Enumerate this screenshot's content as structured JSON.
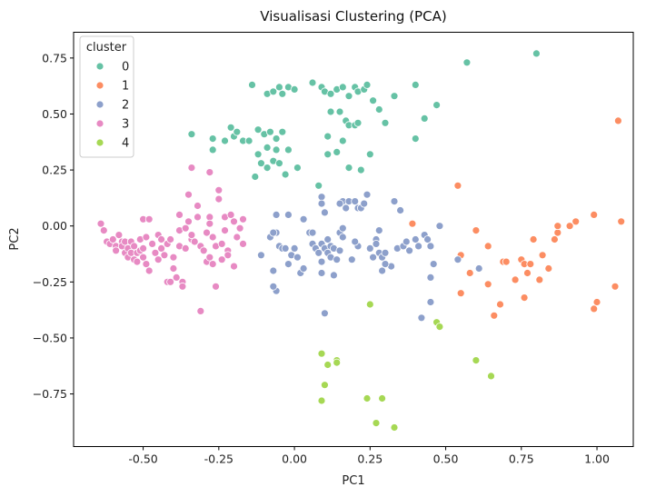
{
  "chart_data": {
    "type": "scatter",
    "title": "Visualisasi Clustering (PCA)",
    "xlabel": "PC1",
    "ylabel": "PC2",
    "xlim": [
      -0.73,
      1.12
    ],
    "ylim": [
      -0.985,
      0.865
    ],
    "xticks": [
      "-0.50",
      "-0.25",
      "0.00",
      "0.25",
      "0.50",
      "0.75",
      "1.00"
    ],
    "xtick_values": [
      -0.5,
      -0.25,
      0,
      0.25,
      0.5,
      0.75,
      1.0
    ],
    "yticks": [
      "−0.75",
      "−0.50",
      "−0.25",
      "0.00",
      "0.25",
      "0.50",
      "0.75"
    ],
    "ytick_values": [
      -0.75,
      -0.5,
      -0.25,
      0,
      0.25,
      0.5,
      0.75
    ],
    "grid": false,
    "legend": {
      "title": "cluster",
      "placement": "top-left"
    },
    "series": [
      {
        "name": "0",
        "color": "#66c2a5",
        "points": [
          [
            0.57,
            0.73
          ],
          [
            0.8,
            0.77
          ],
          [
            -0.14,
            0.63
          ],
          [
            -0.09,
            0.59
          ],
          [
            -0.07,
            0.6
          ],
          [
            -0.05,
            0.62
          ],
          [
            -0.04,
            0.59
          ],
          [
            -0.02,
            0.62
          ],
          [
            0.0,
            0.61
          ],
          [
            0.06,
            0.64
          ],
          [
            0.09,
            0.62
          ],
          [
            0.1,
            0.6
          ],
          [
            0.12,
            0.59
          ],
          [
            0.14,
            0.61
          ],
          [
            0.16,
            0.62
          ],
          [
            0.18,
            0.58
          ],
          [
            0.2,
            0.62
          ],
          [
            0.21,
            0.6
          ],
          [
            0.23,
            0.61
          ],
          [
            0.24,
            0.63
          ],
          [
            0.26,
            0.56
          ],
          [
            0.28,
            0.52
          ],
          [
            0.3,
            0.46
          ],
          [
            0.33,
            0.58
          ],
          [
            0.4,
            0.63
          ],
          [
            0.47,
            0.54
          ],
          [
            0.43,
            0.48
          ],
          [
            0.4,
            0.39
          ],
          [
            -0.34,
            0.41
          ],
          [
            -0.27,
            0.34
          ],
          [
            -0.27,
            0.39
          ],
          [
            -0.23,
            0.38
          ],
          [
            -0.21,
            0.44
          ],
          [
            -0.2,
            0.4
          ],
          [
            -0.19,
            0.42
          ],
          [
            -0.17,
            0.38
          ],
          [
            -0.15,
            0.38
          ],
          [
            -0.12,
            0.43
          ],
          [
            -0.1,
            0.41
          ],
          [
            -0.08,
            0.42
          ],
          [
            -0.06,
            0.39
          ],
          [
            -0.04,
            0.42
          ],
          [
            -0.02,
            0.34
          ],
          [
            -0.06,
            0.34
          ],
          [
            -0.09,
            0.35
          ],
          [
            -0.12,
            0.32
          ],
          [
            -0.11,
            0.28
          ],
          [
            -0.09,
            0.26
          ],
          [
            -0.07,
            0.29
          ],
          [
            -0.05,
            0.28
          ],
          [
            -0.03,
            0.23
          ],
          [
            0.01,
            0.26
          ],
          [
            -0.13,
            0.22
          ],
          [
            0.11,
            0.4
          ],
          [
            0.12,
            0.51
          ],
          [
            0.15,
            0.51
          ],
          [
            0.16,
            0.38
          ],
          [
            0.17,
            0.47
          ],
          [
            0.18,
            0.45
          ],
          [
            0.2,
            0.45
          ],
          [
            0.21,
            0.46
          ],
          [
            0.11,
            0.32
          ],
          [
            0.14,
            0.33
          ],
          [
            0.18,
            0.26
          ],
          [
            0.22,
            0.25
          ],
          [
            0.25,
            0.32
          ],
          [
            0.08,
            0.18
          ]
        ]
      },
      {
        "name": "1",
        "color": "#fc8d62",
        "points": [
          [
            1.07,
            0.47
          ],
          [
            0.39,
            0.01
          ],
          [
            0.54,
            0.18
          ],
          [
            0.55,
            -0.13
          ],
          [
            0.6,
            -0.02
          ],
          [
            0.58,
            -0.21
          ],
          [
            0.55,
            -0.3
          ],
          [
            0.64,
            -0.09
          ],
          [
            0.64,
            -0.26
          ],
          [
            0.66,
            -0.4
          ],
          [
            0.68,
            -0.35
          ],
          [
            0.69,
            -0.16
          ],
          [
            0.7,
            -0.16
          ],
          [
            0.73,
            -0.24
          ],
          [
            0.75,
            -0.15
          ],
          [
            0.76,
            -0.17
          ],
          [
            0.76,
            -0.32
          ],
          [
            0.77,
            -0.21
          ],
          [
            0.78,
            -0.17
          ],
          [
            0.79,
            -0.06
          ],
          [
            0.81,
            -0.24
          ],
          [
            0.82,
            -0.13
          ],
          [
            0.84,
            -0.19
          ],
          [
            0.86,
            -0.06
          ],
          [
            0.87,
            -0.03
          ],
          [
            0.87,
            0.0
          ],
          [
            0.91,
            0.0
          ],
          [
            0.93,
            0.02
          ],
          [
            0.99,
            0.05
          ],
          [
            0.99,
            -0.37
          ],
          [
            1.0,
            -0.34
          ],
          [
            1.06,
            -0.27
          ],
          [
            1.08,
            0.02
          ]
        ]
      },
      {
        "name": "2",
        "color": "#8da0cb",
        "points": [
          [
            -0.11,
            -0.13
          ],
          [
            -0.08,
            -0.05
          ],
          [
            -0.06,
            -0.03
          ],
          [
            -0.05,
            -0.09
          ],
          [
            -0.04,
            -0.1
          ],
          [
            -0.06,
            -0.29
          ],
          [
            -0.07,
            -0.27
          ],
          [
            -0.07,
            -0.03
          ],
          [
            -0.06,
            0.05
          ],
          [
            -0.07,
            -0.2
          ],
          [
            -0.03,
            -0.1
          ],
          [
            -0.02,
            -0.17
          ],
          [
            -0.01,
            -0.13
          ],
          [
            0.0,
            -0.1
          ],
          [
            0.01,
            -0.14
          ],
          [
            0.02,
            -0.21
          ],
          [
            -0.02,
            0.05
          ],
          [
            0.03,
            0.03
          ],
          [
            0.05,
            -0.03
          ],
          [
            0.06,
            -0.08
          ],
          [
            0.07,
            -0.1
          ],
          [
            0.08,
            -0.12
          ],
          [
            0.09,
            -0.16
          ],
          [
            0.09,
            -0.08
          ],
          [
            0.09,
            -0.21
          ],
          [
            0.1,
            0.06
          ],
          [
            0.1,
            -0.1
          ],
          [
            0.11,
            -0.06
          ],
          [
            0.11,
            -0.12
          ],
          [
            0.12,
            -0.09
          ],
          [
            0.12,
            -0.14
          ],
          [
            0.13,
            -0.1
          ],
          [
            0.13,
            -0.22
          ],
          [
            0.14,
            -0.15
          ],
          [
            0.15,
            -0.11
          ],
          [
            0.15,
            -0.03
          ],
          [
            0.16,
            -0.01
          ],
          [
            0.16,
            0.11
          ],
          [
            0.17,
            0.08
          ],
          [
            0.18,
            0.11
          ],
          [
            0.19,
            -0.15
          ],
          [
            0.2,
            0.11
          ],
          [
            0.21,
            0.08
          ],
          [
            0.21,
            -0.09
          ],
          [
            0.22,
            0.08
          ],
          [
            0.23,
            0.1
          ],
          [
            0.24,
            0.14
          ],
          [
            0.25,
            -0.1
          ],
          [
            0.26,
            -0.14
          ],
          [
            0.27,
            -0.06
          ],
          [
            0.27,
            -0.08
          ],
          [
            0.28,
            -0.12
          ],
          [
            0.28,
            -0.02
          ],
          [
            0.29,
            -0.14
          ],
          [
            0.29,
            -0.2
          ],
          [
            0.3,
            -0.12
          ],
          [
            0.32,
            -0.18
          ],
          [
            0.33,
            0.11
          ],
          [
            0.34,
            -0.1
          ],
          [
            0.36,
            -0.09
          ],
          [
            0.38,
            -0.11
          ],
          [
            0.4,
            -0.06
          ],
          [
            0.41,
            -0.09
          ],
          [
            0.43,
            -0.04
          ],
          [
            0.44,
            -0.06
          ],
          [
            0.45,
            -0.09
          ],
          [
            0.46,
            -0.17
          ],
          [
            0.45,
            -0.23
          ],
          [
            0.45,
            -0.34
          ],
          [
            0.42,
            -0.41
          ],
          [
            0.48,
            0.0
          ],
          [
            0.54,
            -0.15
          ],
          [
            0.61,
            -0.19
          ],
          [
            0.09,
            0.13
          ],
          [
            0.09,
            0.1
          ],
          [
            0.1,
            -0.39
          ],
          [
            0.14,
            -0.61
          ],
          [
            0.06,
            -0.03
          ],
          [
            0.15,
            0.1
          ],
          [
            0.3,
            -0.17
          ],
          [
            0.35,
            0.07
          ],
          [
            0.37,
            -0.07
          ],
          [
            0.16,
            -0.05
          ],
          [
            0.2,
            -0.07
          ],
          [
            0.03,
            -0.19
          ]
        ]
      },
      {
        "name": "3",
        "color": "#e78ac3",
        "points": [
          [
            -0.64,
            0.01
          ],
          [
            -0.63,
            -0.02
          ],
          [
            -0.62,
            -0.07
          ],
          [
            -0.61,
            -0.08
          ],
          [
            -0.6,
            -0.06
          ],
          [
            -0.59,
            -0.09
          ],
          [
            -0.59,
            -0.11
          ],
          [
            -0.58,
            -0.04
          ],
          [
            -0.57,
            -0.07
          ],
          [
            -0.57,
            -0.09
          ],
          [
            -0.56,
            -0.12
          ],
          [
            -0.56,
            -0.07
          ],
          [
            -0.55,
            -0.1
          ],
          [
            -0.55,
            -0.14
          ],
          [
            -0.54,
            -0.07
          ],
          [
            -0.54,
            -0.12
          ],
          [
            -0.53,
            -0.15
          ],
          [
            -0.53,
            -0.09
          ],
          [
            -0.52,
            -0.12
          ],
          [
            -0.52,
            -0.16
          ],
          [
            -0.51,
            -0.06
          ],
          [
            -0.51,
            -0.11
          ],
          [
            -0.5,
            -0.14
          ],
          [
            -0.5,
            -0.1
          ],
          [
            -0.5,
            0.03
          ],
          [
            -0.49,
            -0.05
          ],
          [
            -0.49,
            -0.17
          ],
          [
            -0.48,
            -0.2
          ],
          [
            -0.48,
            0.03
          ],
          [
            -0.47,
            -0.08
          ],
          [
            -0.46,
            -0.12
          ],
          [
            -0.45,
            -0.04
          ],
          [
            -0.45,
            -0.15
          ],
          [
            -0.44,
            -0.06
          ],
          [
            -0.44,
            -0.1
          ],
          [
            -0.43,
            -0.13
          ],
          [
            -0.42,
            -0.25
          ],
          [
            -0.42,
            -0.08
          ],
          [
            -0.41,
            -0.06
          ],
          [
            -0.41,
            -0.25
          ],
          [
            -0.4,
            -0.14
          ],
          [
            -0.4,
            -0.19
          ],
          [
            -0.39,
            -0.23
          ],
          [
            -0.38,
            -0.02
          ],
          [
            -0.38,
            -0.09
          ],
          [
            -0.38,
            0.05
          ],
          [
            -0.37,
            -0.25
          ],
          [
            -0.37,
            -0.27
          ],
          [
            -0.36,
            -0.1
          ],
          [
            -0.36,
            -0.01
          ],
          [
            -0.35,
            0.14
          ],
          [
            -0.35,
            0.02
          ],
          [
            -0.34,
            -0.06
          ],
          [
            -0.34,
            -0.04
          ],
          [
            -0.33,
            -0.07
          ],
          [
            -0.32,
            0.04
          ],
          [
            -0.32,
            0.09
          ],
          [
            -0.31,
            -0.09
          ],
          [
            -0.3,
            -0.11
          ],
          [
            -0.29,
            -0.16
          ],
          [
            -0.29,
            -0.03
          ],
          [
            -0.28,
            0.04
          ],
          [
            -0.28,
            0.01
          ],
          [
            -0.27,
            -0.05
          ],
          [
            -0.26,
            -0.09
          ],
          [
            -0.25,
            0.16
          ],
          [
            -0.25,
            0.12
          ],
          [
            -0.24,
            -0.15
          ],
          [
            -0.24,
            -0.08
          ],
          [
            -0.23,
            0.04
          ],
          [
            -0.23,
            -0.02
          ],
          [
            -0.22,
            -0.11
          ],
          [
            -0.21,
            0.05
          ],
          [
            -0.2,
            0.02
          ],
          [
            -0.19,
            -0.05
          ],
          [
            -0.18,
            -0.01
          ],
          [
            -0.17,
            0.03
          ],
          [
            -0.17,
            -0.08
          ],
          [
            -0.34,
            0.26
          ],
          [
            -0.28,
            0.24
          ],
          [
            -0.26,
            -0.27
          ],
          [
            -0.31,
            -0.38
          ],
          [
            -0.2,
            -0.18
          ],
          [
            -0.22,
            -0.13
          ],
          [
            -0.27,
            -0.17
          ],
          [
            -0.28,
            -0.14
          ]
        ]
      },
      {
        "name": "4",
        "color": "#a6d854",
        "points": [
          [
            0.25,
            -0.35
          ],
          [
            0.47,
            -0.43
          ],
          [
            0.48,
            -0.45
          ],
          [
            0.6,
            -0.6
          ],
          [
            0.65,
            -0.67
          ],
          [
            0.09,
            -0.57
          ],
          [
            0.11,
            -0.62
          ],
          [
            0.14,
            -0.6
          ],
          [
            0.14,
            -0.61
          ],
          [
            0.1,
            -0.71
          ],
          [
            0.09,
            -0.78
          ],
          [
            0.24,
            -0.77
          ],
          [
            0.29,
            -0.77
          ],
          [
            0.27,
            -0.88
          ],
          [
            0.33,
            -0.9
          ]
        ]
      }
    ]
  }
}
